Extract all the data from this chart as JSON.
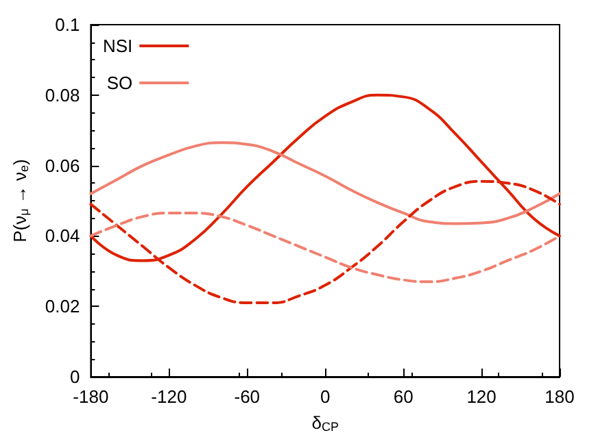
{
  "chart_data": {
    "type": "line",
    "xlabel": "δ$_{CP}$",
    "ylabel": "P(ν$_{μ}$ → ν$_{e}$)",
    "x": [
      -180,
      -160,
      -140,
      -120,
      -100,
      -80,
      -60,
      -40,
      -20,
      0,
      20,
      40,
      60,
      80,
      100,
      120,
      140,
      160,
      180
    ],
    "series": [
      {
        "name": "NSI",
        "color": "#dd2200",
        "line_style": "solid",
        "values": [
          0.04,
          0.0345,
          0.033,
          0.0345,
          0.039,
          0.046,
          0.054,
          0.061,
          0.068,
          0.074,
          0.078,
          0.08,
          0.0795,
          0.076,
          0.069,
          0.061,
          0.053,
          0.045,
          0.04
        ]
      },
      {
        "name": "SO",
        "color": "#f08070",
        "line_style": "solid",
        "values": [
          0.052,
          0.056,
          0.06,
          0.063,
          0.0655,
          0.0665,
          0.066,
          0.064,
          0.0605,
          0.057,
          0.053,
          0.0495,
          0.0465,
          0.044,
          0.0435,
          0.0437,
          0.045,
          0.048,
          0.052
        ]
      },
      {
        "color": "#dd2200",
        "line_style": "dashed",
        "values": [
          0.049,
          0.043,
          0.037,
          0.031,
          0.026,
          0.0225,
          0.021,
          0.021,
          0.023,
          0.026,
          0.031,
          0.037,
          0.044,
          0.05,
          0.054,
          0.0555,
          0.055,
          0.053,
          0.049
        ]
      },
      {
        "color": "#f08070",
        "line_style": "dashed",
        "values": [
          0.04,
          0.043,
          0.0455,
          0.0465,
          0.0465,
          0.0455,
          0.043,
          0.04,
          0.037,
          0.034,
          0.031,
          0.029,
          0.0275,
          0.027,
          0.028,
          0.03,
          0.033,
          0.036,
          0.04
        ]
      }
    ],
    "xlim": [
      -180,
      180
    ],
    "xticks": [
      -180,
      -120,
      -60,
      0,
      60,
      120,
      180
    ],
    "ylim": [
      0,
      0.1
    ],
    "yticks": [
      0,
      0.02,
      0.04,
      0.06,
      0.08,
      0.1
    ],
    "grid": false,
    "legend": "top left",
    "marker": "none"
  }
}
